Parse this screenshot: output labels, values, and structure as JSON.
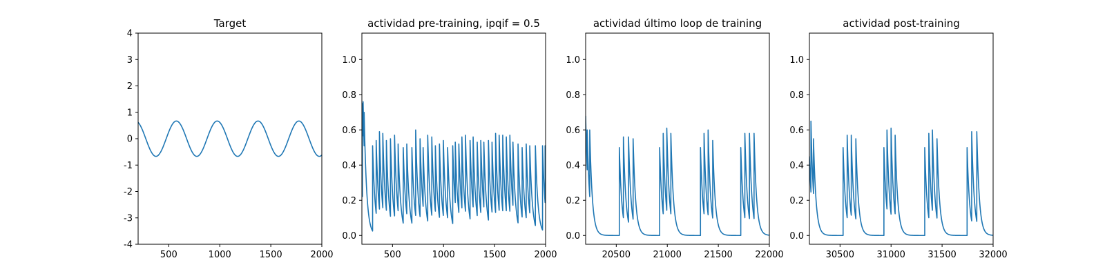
{
  "colors": {
    "line": "#1f77b4",
    "axes": "#000000",
    "background": "#ffffff"
  },
  "chart_data": [
    {
      "type": "line",
      "title": "Target",
      "xlabel": "",
      "ylabel": "",
      "xlim": [
        200,
        2000
      ],
      "ylim": [
        -4,
        4
      ],
      "grid": false,
      "xticks": [
        500,
        1000,
        1500,
        2000
      ],
      "yticks": [
        -4,
        -3,
        -2,
        -1,
        0,
        1,
        2,
        3,
        4
      ],
      "series": [
        {
          "kind": "sine",
          "amplitude": 0.67,
          "period": 400,
          "phase_x": 175,
          "x_start": 200,
          "x_end": 2000
        }
      ]
    },
    {
      "type": "line",
      "title": "actividad pre-training, ipqif = 0.5",
      "xlabel": "",
      "ylabel": "",
      "xlim": [
        200,
        2000
      ],
      "ylim": [
        -0.05,
        1.15
      ],
      "grid": false,
      "xticks": [
        500,
        1000,
        1500,
        2000
      ],
      "yticks": [
        0.0,
        0.2,
        0.4,
        0.6,
        0.8,
        1.0
      ],
      "series": [
        {
          "kind": "spikes",
          "x_start": 200,
          "x_end": 2000,
          "baseline": 0.0,
          "decay": 25,
          "start_value": 0.27,
          "spikes": [
            [
              205,
              0.75
            ],
            [
              212,
              0.76
            ],
            [
              222,
              0.7
            ],
            [
              305,
              0.51
            ],
            [
              340,
              0.54
            ],
            [
              372,
              0.59
            ],
            [
              405,
              0.58
            ],
            [
              440,
              0.54
            ],
            [
              480,
              0.55
            ],
            [
              520,
              0.57
            ],
            [
              555,
              0.52
            ],
            [
              605,
              0.5
            ],
            [
              640,
              0.52
            ],
            [
              690,
              0.5
            ],
            [
              727,
              0.6
            ],
            [
              770,
              0.55
            ],
            [
              800,
              0.5
            ],
            [
              845,
              0.57
            ],
            [
              885,
              0.56
            ],
            [
              920,
              0.51
            ],
            [
              960,
              0.52
            ],
            [
              998,
              0.54
            ],
            [
              1040,
              0.5
            ],
            [
              1090,
              0.51
            ],
            [
              1115,
              0.53
            ],
            [
              1150,
              0.52
            ],
            [
              1180,
              0.56
            ],
            [
              1215,
              0.57
            ],
            [
              1260,
              0.54
            ],
            [
              1290,
              0.56
            ],
            [
              1330,
              0.53
            ],
            [
              1365,
              0.54
            ],
            [
              1395,
              0.53
            ],
            [
              1440,
              0.54
            ],
            [
              1475,
              0.53
            ],
            [
              1510,
              0.58
            ],
            [
              1545,
              0.57
            ],
            [
              1580,
              0.57
            ],
            [
              1615,
              0.56
            ],
            [
              1650,
              0.57
            ],
            [
              1680,
              0.53
            ],
            [
              1730,
              0.52
            ],
            [
              1770,
              0.5
            ],
            [
              1810,
              0.52
            ],
            [
              1845,
              0.51
            ],
            [
              1900,
              0.51
            ],
            [
              1970,
              0.51
            ],
            [
              1995,
              0.51
            ]
          ]
        }
      ]
    },
    {
      "type": "line",
      "title": "actividad último loop de training",
      "xlabel": "",
      "ylabel": "",
      "xlim": [
        20200,
        22000
      ],
      "ylim": [
        -0.05,
        1.15
      ],
      "grid": false,
      "xticks": [
        20500,
        21000,
        21500,
        22000
      ],
      "yticks": [
        0.0,
        0.2,
        0.4,
        0.6,
        0.8,
        1.0
      ],
      "series": [
        {
          "kind": "spikes",
          "x_start": 20200,
          "x_end": 22000,
          "baseline": 0.0,
          "decay": 25,
          "start_value": 0.68,
          "spikes": [
            [
              20215,
              0.6
            ],
            [
              20240,
              0.6
            ],
            [
              20530,
              0.5
            ],
            [
              20570,
              0.56
            ],
            [
              20620,
              0.56
            ],
            [
              20665,
              0.55
            ],
            [
              20925,
              0.5
            ],
            [
              20960,
              0.58
            ],
            [
              20995,
              0.61
            ],
            [
              21035,
              0.58
            ],
            [
              21325,
              0.5
            ],
            [
              21360,
              0.58
            ],
            [
              21400,
              0.6
            ],
            [
              21445,
              0.54
            ],
            [
              21720,
              0.5
            ],
            [
              21760,
              0.58
            ],
            [
              21805,
              0.58
            ],
            [
              21850,
              0.58
            ]
          ]
        }
      ]
    },
    {
      "type": "line",
      "title": "actividad post-training",
      "xlabel": "",
      "ylabel": "",
      "xlim": [
        30200,
        32000
      ],
      "ylim": [
        -0.05,
        1.15
      ],
      "grid": false,
      "xticks": [
        30500,
        31000,
        31500,
        32000
      ],
      "yticks": [
        0.0,
        0.2,
        0.4,
        0.6,
        0.8,
        1.0
      ],
      "series": [
        {
          "kind": "spikes",
          "x_start": 30200,
          "x_end": 32000,
          "baseline": 0.0,
          "decay": 25,
          "start_value": 0.45,
          "spikes": [
            [
              30215,
              0.65
            ],
            [
              30240,
              0.55
            ],
            [
              30530,
              0.5
            ],
            [
              30570,
              0.57
            ],
            [
              30610,
              0.57
            ],
            [
              30655,
              0.55
            ],
            [
              30930,
              0.5
            ],
            [
              30960,
              0.6
            ],
            [
              31000,
              0.61
            ],
            [
              31040,
              0.57
            ],
            [
              31330,
              0.5
            ],
            [
              31370,
              0.58
            ],
            [
              31405,
              0.6
            ],
            [
              31450,
              0.55
            ],
            [
              31745,
              0.5
            ],
            [
              31790,
              0.59
            ],
            [
              31840,
              0.59
            ]
          ]
        }
      ]
    }
  ]
}
